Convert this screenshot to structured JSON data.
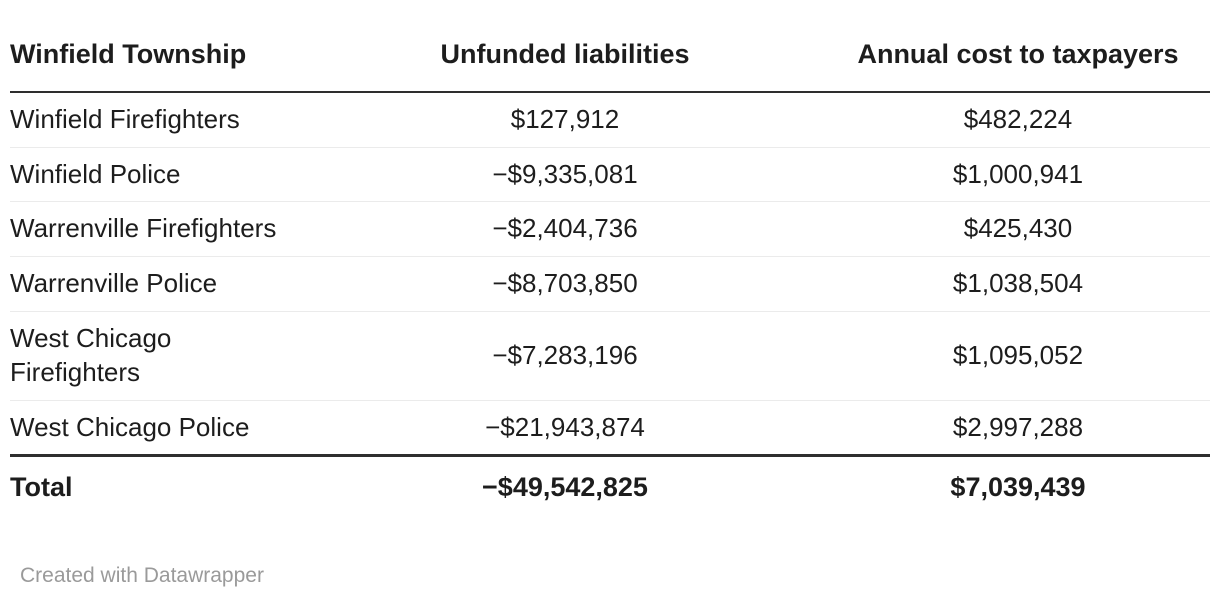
{
  "chart_data": {
    "type": "table",
    "title": "Winfield Township",
    "columns": [
      "Winfield Township",
      "Unfunded liabilities",
      "Annual cost to taxpayers"
    ],
    "rows": [
      {
        "name": "Winfield Firefighters",
        "unfunded_liabilities": 127912,
        "annual_cost_to_taxpayers": 482224
      },
      {
        "name": "Winfield Police",
        "unfunded_liabilities": -9335081,
        "annual_cost_to_taxpayers": 1000941
      },
      {
        "name": "Warrenville Firefighters",
        "unfunded_liabilities": -2404736,
        "annual_cost_to_taxpayers": 425430
      },
      {
        "name": "Warrenville Police",
        "unfunded_liabilities": -8703850,
        "annual_cost_to_taxpayers": 1038504
      },
      {
        "name": "West Chicago Firefighters",
        "unfunded_liabilities": -7283196,
        "annual_cost_to_taxpayers": 1095052
      },
      {
        "name": "West Chicago Police",
        "unfunded_liabilities": -21943874,
        "annual_cost_to_taxpayers": 2997288
      }
    ],
    "total": {
      "name": "Total",
      "unfunded_liabilities": -49542825,
      "annual_cost_to_taxpayers": 7039439
    },
    "layout_hints": {
      "numeric_alignment": "center",
      "header_rule": true,
      "total_rule": true,
      "row_separators": true
    }
  },
  "table": {
    "headers": {
      "col1": "Winfield Township",
      "col2": "Unfunded liabilities",
      "col3": "Annual cost to taxpayers"
    },
    "rows": [
      [
        "Winfield Firefighters",
        "$127,912",
        "$482,224"
      ],
      [
        "Winfield Police",
        "−$9,335,081",
        "$1,000,941"
      ],
      [
        "Warrenville Firefighters",
        "−$2,404,736",
        "$425,430"
      ],
      [
        "Warrenville Police",
        "−$8,703,850",
        "$1,038,504"
      ],
      [
        "West Chicago Firefighters",
        "−$7,283,196",
        "$1,095,052"
      ],
      [
        "West Chicago Police",
        "−$21,943,874",
        "$2,997,288"
      ]
    ],
    "total": {
      "label": "Total",
      "unfunded": "−$49,542,825",
      "annual": "$7,039,439"
    }
  },
  "footer": {
    "credit": "Created with Datawrapper"
  },
  "colors": {
    "text": "#1d1d1d",
    "thick_rule": "#2e2e2e",
    "row_rule": "#ebebeb",
    "credit_text": "#9a9a9a",
    "background": "#ffffff"
  }
}
